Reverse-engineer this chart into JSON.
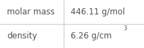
{
  "rows": [
    {
      "label": "molar mass",
      "value": "446.11 g/mol",
      "superscript": null
    },
    {
      "label": "density",
      "value": "6.26 g/cm",
      "superscript": "3"
    }
  ],
  "background_color": "#ffffff",
  "line_color": "#cccccc",
  "text_color": "#505050",
  "label_fontsize": 8.5,
  "value_fontsize": 8.5,
  "sup_fontsize": 5.5,
  "col_split": 0.44,
  "figsize": [
    2.08,
    0.7
  ],
  "dpi": 100
}
